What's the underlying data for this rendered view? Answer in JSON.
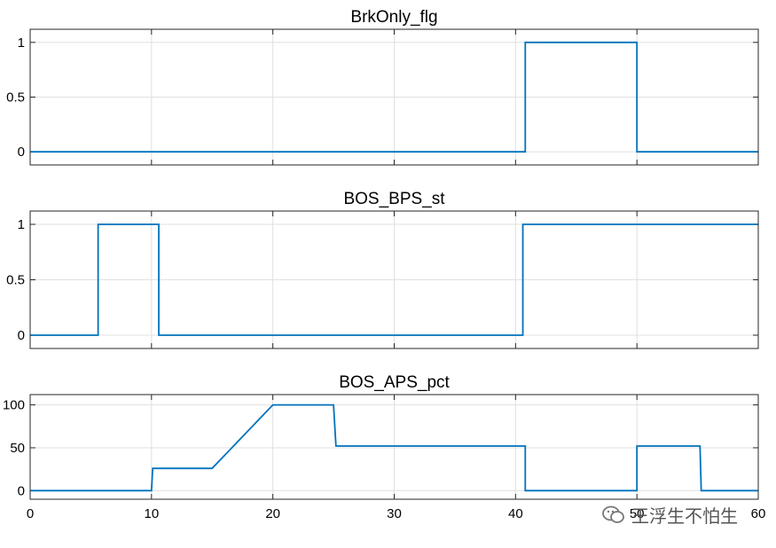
{
  "chart_data": [
    {
      "type": "line",
      "title": "BrkOnly_flg",
      "xlim": [
        0,
        60
      ],
      "ylim": [
        -0.12,
        1.12
      ],
      "yticks": [
        0,
        0.5,
        1
      ],
      "ytick_labels": [
        "0",
        "0.5",
        "1"
      ],
      "grid": true,
      "color": "#0072BD",
      "series": [
        {
          "x": [
            0,
            40.8,
            40.8,
            50,
            50,
            60
          ],
          "y": [
            0,
            0,
            1,
            1,
            0,
            0
          ]
        }
      ]
    },
    {
      "type": "line",
      "title": "BOS_BPS_st",
      "xlim": [
        0,
        60
      ],
      "ylim": [
        -0.12,
        1.12
      ],
      "yticks": [
        0,
        0.5,
        1
      ],
      "ytick_labels": [
        "0",
        "0.5",
        "1"
      ],
      "grid": true,
      "color": "#0072BD",
      "series": [
        {
          "x": [
            0,
            5.6,
            5.6,
            10.6,
            10.6,
            40.6,
            40.6,
            60
          ],
          "y": [
            0,
            0,
            1,
            1,
            0,
            0,
            1,
            1
          ]
        }
      ]
    },
    {
      "type": "line",
      "title": "BOS_APS_pct",
      "xlim": [
        0,
        60
      ],
      "ylim": [
        -10,
        112
      ],
      "yticks": [
        0,
        50,
        100
      ],
      "ytick_labels": [
        "0",
        "50",
        "100"
      ],
      "xticks": [
        0,
        10,
        20,
        30,
        40,
        50,
        60
      ],
      "xtick_labels": [
        "0",
        "10",
        "20",
        "30",
        "40",
        "50",
        "60"
      ],
      "grid": true,
      "color": "#0072BD",
      "series": [
        {
          "x": [
            0,
            10,
            10.1,
            15,
            20,
            25,
            25.2,
            40.8,
            40.8,
            50,
            50,
            55.2,
            55.3,
            60
          ],
          "y": [
            0,
            0,
            26,
            26,
            100,
            100,
            52,
            52,
            0,
            0,
            52,
            52,
            0,
            0
          ]
        }
      ]
    }
  ],
  "watermark": {
    "text": "王浮生不怕生",
    "icon": "wechat-bubble-icon"
  }
}
